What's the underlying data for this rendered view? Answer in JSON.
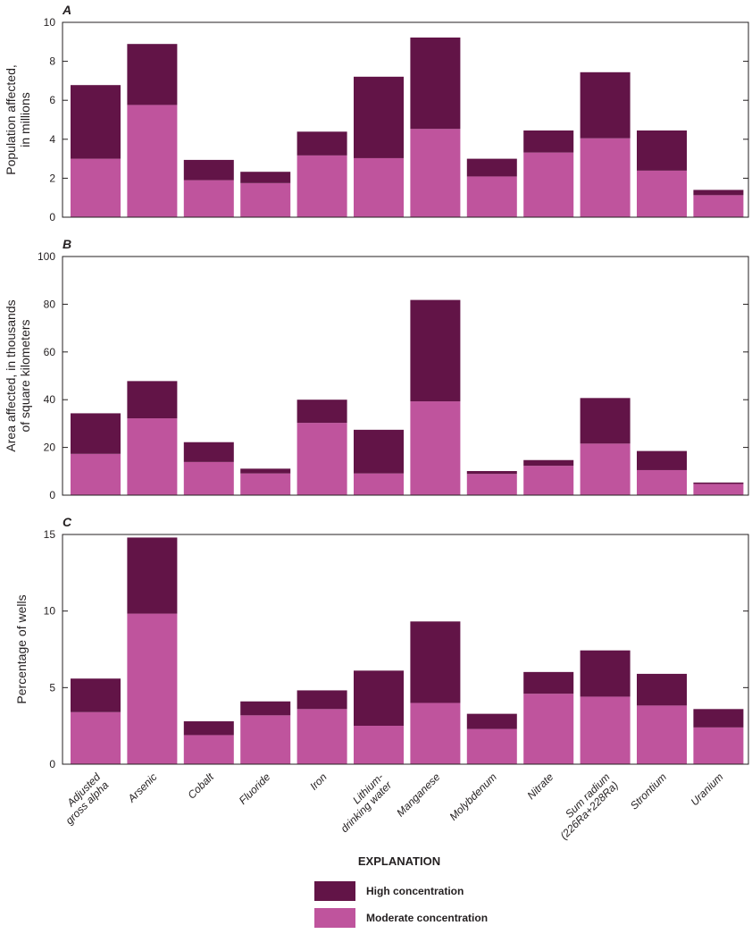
{
  "chart_data": [
    {
      "type": "bar",
      "stacked": true,
      "panel_label": "A",
      "ylabel": [
        "Population affected,",
        "in millions"
      ],
      "ylim": [
        0,
        10
      ],
      "yticks": [
        0,
        2,
        4,
        6,
        8,
        10
      ],
      "categories": [
        "Adjusted gross alpha",
        "Arsenic",
        "Cobalt",
        "Fluoride",
        "Iron",
        "Lithium-drinking water",
        "Manganese",
        "Molybdenum",
        "Nitrate",
        "Sum radium (226Ra+228Ra)",
        "Strontium",
        "Uranium"
      ],
      "series": [
        {
          "name": "Moderate concentration",
          "values": [
            3.0,
            5.76,
            1.9,
            1.75,
            3.17,
            3.03,
            4.53,
            2.09,
            3.32,
            4.05,
            2.39,
            1.13
          ]
        },
        {
          "name": "High concentration",
          "values": [
            3.78,
            3.13,
            1.04,
            0.58,
            1.22,
            4.18,
            4.69,
            0.91,
            1.13,
            3.39,
            2.06,
            0.27
          ]
        }
      ]
    },
    {
      "type": "bar",
      "stacked": true,
      "panel_label": "B",
      "ylabel": [
        "Area affected, in thousands",
        "of square kilometers"
      ],
      "ylim": [
        0,
        100
      ],
      "yticks": [
        0,
        20,
        40,
        60,
        80,
        100
      ],
      "categories": [
        "Adjusted gross alpha",
        "Arsenic",
        "Cobalt",
        "Fluoride",
        "Iron",
        "Lithium-drinking water",
        "Manganese",
        "Molybdenum",
        "Nitrate",
        "Sum radium (226Ra+228Ra)",
        "Strontium",
        "Uranium"
      ],
      "series": [
        {
          "name": "Moderate concentration",
          "values": [
            17.3,
            32.2,
            13.9,
            9.1,
            30.3,
            9.1,
            39.3,
            8.9,
            12.3,
            21.6,
            10.5,
            4.7
          ]
        },
        {
          "name": "High concentration",
          "values": [
            17.0,
            15.6,
            8.3,
            2.0,
            9.7,
            18.3,
            42.5,
            1.2,
            2.4,
            19.1,
            8.0,
            0.6
          ]
        }
      ]
    },
    {
      "type": "bar",
      "stacked": true,
      "panel_label": "C",
      "ylabel": [
        "Percentage of wells"
      ],
      "ylim": [
        0,
        15
      ],
      "yticks": [
        0,
        5,
        10,
        15
      ],
      "categories": [
        "Adjusted gross alpha",
        "Arsenic",
        "Cobalt",
        "Fluoride",
        "Iron",
        "Lithium-drinking water",
        "Manganese",
        "Molybdenum",
        "Nitrate",
        "Sum radium (226Ra+228Ra)",
        "Strontium",
        "Uranium"
      ],
      "series": [
        {
          "name": "Moderate concentration",
          "values": [
            3.4,
            9.83,
            1.9,
            3.19,
            3.6,
            2.51,
            4.0,
            2.3,
            4.6,
            4.41,
            3.83,
            2.4
          ]
        },
        {
          "name": "High concentration",
          "values": [
            2.19,
            4.97,
            0.9,
            0.91,
            1.22,
            3.6,
            5.32,
            0.99,
            1.42,
            3.02,
            2.07,
            1.2
          ]
        }
      ]
    }
  ],
  "x_tick_labels": [
    [
      "Adjusted",
      "gross alpha"
    ],
    [
      "Arsenic"
    ],
    [
      "Cobalt"
    ],
    [
      "Fluoride"
    ],
    [
      "Iron"
    ],
    [
      "Lithium-",
      "drinking water"
    ],
    [
      "Manganese"
    ],
    [
      "Molybdenum"
    ],
    [
      "Nitrate"
    ],
    [
      "Sum radium",
      "(226Ra+228Ra)"
    ],
    [
      "Strontium"
    ],
    [
      "Uranium"
    ]
  ],
  "legend": {
    "title": "EXPLANATION",
    "items": [
      {
        "label": "High concentration",
        "color": "#621447"
      },
      {
        "label": "Moderate concentration",
        "color": "#bf549d"
      }
    ]
  },
  "colors": {
    "high": "#621447",
    "moderate": "#bf549d"
  }
}
